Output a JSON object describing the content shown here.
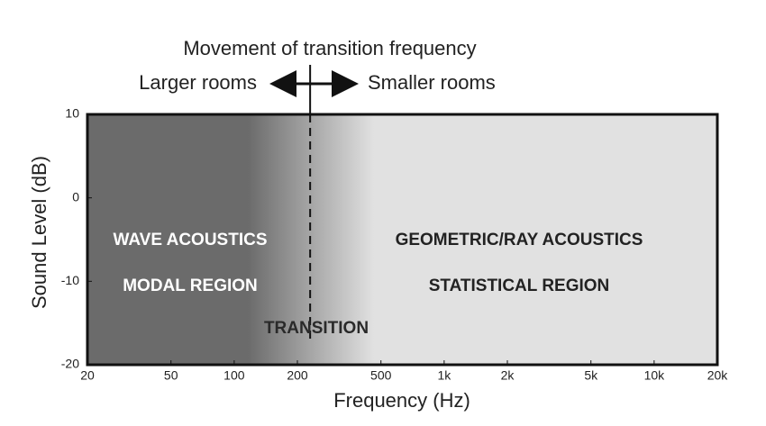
{
  "chart_data": {
    "type": "regions",
    "title": "Movement of transition frequency",
    "direction_labels": [
      "Larger rooms",
      "Smaller rooms"
    ],
    "annotations": [
      "WAVE ACOUSTICS",
      "MODAL REGION",
      "TRANSITION",
      "GEOMETRIC/RAY ACOUSTICS",
      "STATISTICAL REGION"
    ],
    "x_label": "Frequency (Hz)",
    "y_label": "Sound Level (dB)",
    "x_scale": "log",
    "xlim": [
      20,
      20000
    ],
    "xticks": [
      20,
      50,
      100,
      200,
      500,
      {
        "value": 1000,
        "label": "1k"
      },
      {
        "value": 2000,
        "label": "2k"
      },
      {
        "value": 5000,
        "label": "5k"
      },
      {
        "value": 10000,
        "label": "10k"
      },
      {
        "value": 20000,
        "label": "20k"
      }
    ],
    "ylim": [
      -20,
      10
    ],
    "yticks": [
      -20,
      -10,
      0,
      10
    ],
    "transition_frequency": 230,
    "colors": [
      "#6b6b6b",
      "#e1e1e1"
    ]
  }
}
